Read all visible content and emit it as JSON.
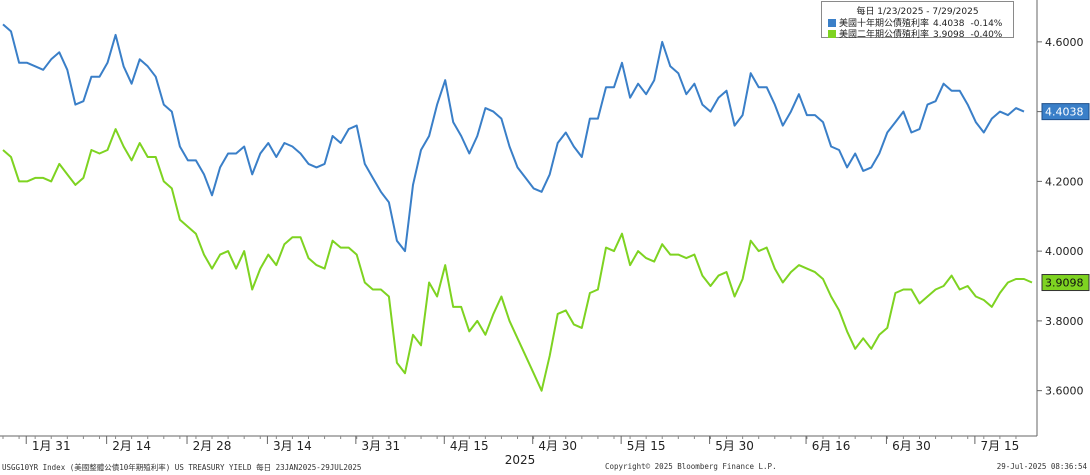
{
  "legend": {
    "title": "每日 1/23/2025 - 7/29/2025",
    "items": [
      {
        "name": "美國十年期公債殖利率",
        "last": "4.4038",
        "change": "-0.14%",
        "color": "#3a7fc8"
      },
      {
        "name": "美國二年期公債殖利率",
        "last": "3.9098",
        "change": "-0.40%",
        "color": "#7ed321"
      }
    ]
  },
  "footer": {
    "left": "USGG10YR Index (美國整體公債10年期殖利率) US TREASURY YIELD  每日 23JAN2025-29JUL2025",
    "center": "Copyright© 2025 Bloomberg Finance L.P.",
    "right": "29-Jul-2025 08:36:54"
  },
  "chart_data": {
    "type": "line",
    "year_label": "2025",
    "x_ticks": [
      "1月 31",
      "2月 14",
      "2月 28",
      "3月 14",
      "3月 31",
      "4月 15",
      "4月 30",
      "5月 15",
      "5月 30",
      "6月 16",
      "6月 30",
      "7月 15"
    ],
    "x_tick_index": [
      6,
      16,
      26,
      36,
      47,
      58,
      69,
      80,
      91,
      103,
      113,
      124
    ],
    "y_ticks": [
      "4.6000",
      "4.4000",
      "4.2000",
      "4.0000",
      "3.8000",
      "3.6000"
    ],
    "ylim": [
      3.47,
      4.72
    ],
    "grid": false,
    "series": [
      {
        "name": "美國十年期公債殖利率",
        "color": "#3a7fc8",
        "last_label": "4.4038",
        "values": [
          4.65,
          4.63,
          4.54,
          4.54,
          4.53,
          4.52,
          4.55,
          4.57,
          4.52,
          4.42,
          4.43,
          4.5,
          4.5,
          4.54,
          4.62,
          4.53,
          4.48,
          4.55,
          4.53,
          4.5,
          4.42,
          4.4,
          4.3,
          4.26,
          4.26,
          4.22,
          4.16,
          4.24,
          4.28,
          4.28,
          4.3,
          4.22,
          4.28,
          4.31,
          4.27,
          4.31,
          4.3,
          4.28,
          4.25,
          4.24,
          4.25,
          4.33,
          4.31,
          4.35,
          4.36,
          4.25,
          4.21,
          4.17,
          4.14,
          4.03,
          4.0,
          4.19,
          4.29,
          4.33,
          4.42,
          4.49,
          4.37,
          4.33,
          4.28,
          4.33,
          4.41,
          4.4,
          4.38,
          4.3,
          4.24,
          4.21,
          4.18,
          4.17,
          4.22,
          4.31,
          4.34,
          4.3,
          4.27,
          4.38,
          4.38,
          4.47,
          4.47,
          4.54,
          4.44,
          4.48,
          4.45,
          4.49,
          4.6,
          4.53,
          4.51,
          4.45,
          4.48,
          4.42,
          4.4,
          4.44,
          4.46,
          4.36,
          4.39,
          4.51,
          4.47,
          4.47,
          4.42,
          4.36,
          4.4,
          4.45,
          4.39,
          4.39,
          4.37,
          4.3,
          4.29,
          4.24,
          4.28,
          4.23,
          4.24,
          4.28,
          4.34,
          4.37,
          4.4,
          4.34,
          4.35,
          4.42,
          4.43,
          4.48,
          4.46,
          4.46,
          4.42,
          4.37,
          4.34,
          4.38,
          4.4,
          4.39,
          4.41,
          4.4
        ]
      },
      {
        "name": "美國二年期公債殖利率",
        "color": "#7ed321",
        "last_label": "3.9098",
        "values": [
          4.29,
          4.27,
          4.2,
          4.2,
          4.21,
          4.21,
          4.2,
          4.25,
          4.22,
          4.19,
          4.21,
          4.29,
          4.28,
          4.29,
          4.35,
          4.3,
          4.26,
          4.31,
          4.27,
          4.27,
          4.2,
          4.18,
          4.09,
          4.07,
          4.05,
          3.99,
          3.95,
          3.99,
          4.0,
          3.95,
          4.0,
          3.89,
          3.95,
          3.99,
          3.96,
          4.02,
          4.04,
          4.04,
          3.98,
          3.96,
          3.95,
          4.03,
          4.01,
          4.01,
          3.99,
          3.91,
          3.89,
          3.89,
          3.87,
          3.68,
          3.65,
          3.76,
          3.73,
          3.91,
          3.87,
          3.96,
          3.84,
          3.84,
          3.77,
          3.8,
          3.76,
          3.82,
          3.87,
          3.8,
          3.75,
          3.7,
          3.65,
          3.6,
          3.7,
          3.82,
          3.83,
          3.79,
          3.78,
          3.88,
          3.89,
          4.01,
          4.0,
          4.05,
          3.96,
          4.0,
          3.98,
          3.97,
          4.02,
          3.99,
          3.99,
          3.98,
          3.99,
          3.93,
          3.9,
          3.93,
          3.94,
          3.87,
          3.92,
          4.03,
          4.0,
          4.01,
          3.95,
          3.91,
          3.94,
          3.96,
          3.95,
          3.94,
          3.92,
          3.87,
          3.83,
          3.77,
          3.72,
          3.75,
          3.72,
          3.76,
          3.78,
          3.88,
          3.89,
          3.89,
          3.85,
          3.87,
          3.89,
          3.9,
          3.93,
          3.89,
          3.9,
          3.87,
          3.86,
          3.84,
          3.88,
          3.91,
          3.92,
          3.92,
          3.91
        ]
      }
    ]
  }
}
